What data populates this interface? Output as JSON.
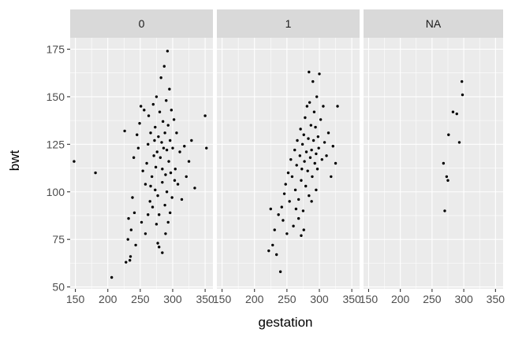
{
  "chart_data": {
    "type": "scatter",
    "xlabel": "gestation",
    "ylabel": "bwt",
    "xlim": [
      142,
      362
    ],
    "ylim": [
      49,
      181
    ],
    "x_ticks": [
      150,
      200,
      250,
      300,
      350
    ],
    "y_ticks": [
      50,
      75,
      100,
      125,
      150,
      175
    ],
    "facets": [
      {
        "label": "0",
        "points": [
          [
            148,
            116
          ],
          [
            181,
            110
          ],
          [
            206,
            55
          ],
          [
            226,
            132
          ],
          [
            228,
            63
          ],
          [
            231,
            75
          ],
          [
            232,
            86
          ],
          [
            234,
            64
          ],
          [
            235,
            66
          ],
          [
            236,
            80
          ],
          [
            238,
            97
          ],
          [
            240,
            118
          ],
          [
            241,
            89
          ],
          [
            243,
            72
          ],
          [
            245,
            130
          ],
          [
            247,
            123
          ],
          [
            249,
            136
          ],
          [
            251,
            145
          ],
          [
            252,
            84
          ],
          [
            254,
            111
          ],
          [
            256,
            143
          ],
          [
            258,
            104
          ],
          [
            260,
            115
          ],
          [
            262,
            125
          ],
          [
            263,
            140
          ],
          [
            265,
            95
          ],
          [
            266,
            131
          ],
          [
            268,
            108
          ],
          [
            270,
            146
          ],
          [
            271,
            119
          ],
          [
            272,
            127
          ],
          [
            273,
            134
          ],
          [
            274,
            113
          ],
          [
            275,
            150
          ],
          [
            276,
            121
          ],
          [
            277,
            73
          ],
          [
            278,
            129
          ],
          [
            279,
            71
          ],
          [
            280,
            142
          ],
          [
            281,
            118
          ],
          [
            282,
            160
          ],
          [
            283,
            126
          ],
          [
            284,
            112
          ],
          [
            285,
            137
          ],
          [
            286,
            123
          ],
          [
            287,
            166
          ],
          [
            288,
            131
          ],
          [
            289,
            109
          ],
          [
            290,
            148
          ],
          [
            291,
            122
          ],
          [
            292,
            174
          ],
          [
            293,
            135
          ],
          [
            294,
            116
          ],
          [
            295,
            154
          ],
          [
            296,
            127
          ],
          [
            297,
            110
          ],
          [
            298,
            143
          ],
          [
            300,
            123
          ],
          [
            302,
            138
          ],
          [
            304,
            112
          ],
          [
            306,
            131
          ],
          [
            308,
            104
          ],
          [
            311,
            121
          ],
          [
            314,
            96
          ],
          [
            318,
            124
          ],
          [
            321,
            108
          ],
          [
            325,
            116
          ],
          [
            329,
            127
          ],
          [
            334,
            102
          ],
          [
            350,
            140
          ],
          [
            352,
            123
          ],
          [
            284,
            105
          ],
          [
            279,
            88
          ],
          [
            277,
            98
          ],
          [
            273,
            101
          ],
          [
            269,
            92
          ],
          [
            266,
            103
          ],
          [
            262,
            88
          ],
          [
            258,
            78
          ],
          [
            288,
            93
          ],
          [
            291,
            100
          ],
          [
            296,
            89
          ],
          [
            299,
            97
          ],
          [
            303,
            106
          ],
          [
            284,
            68
          ],
          [
            275,
            83
          ],
          [
            289,
            78
          ],
          [
            293,
            84
          ]
        ]
      },
      {
        "label": "1",
        "points": [
          [
            222,
            69
          ],
          [
            225,
            91
          ],
          [
            228,
            72
          ],
          [
            231,
            80
          ],
          [
            234,
            67
          ],
          [
            237,
            88
          ],
          [
            240,
            58
          ],
          [
            242,
            92
          ],
          [
            244,
            85
          ],
          [
            246,
            99
          ],
          [
            248,
            104
          ],
          [
            250,
            78
          ],
          [
            252,
            110
          ],
          [
            254,
            95
          ],
          [
            256,
            117
          ],
          [
            258,
            108
          ],
          [
            260,
            82
          ],
          [
            262,
            122
          ],
          [
            263,
            101
          ],
          [
            265,
            114
          ],
          [
            266,
            127
          ],
          [
            268,
            96
          ],
          [
            270,
            119
          ],
          [
            271,
            133
          ],
          [
            272,
            106
          ],
          [
            273,
            112
          ],
          [
            274,
            125
          ],
          [
            275,
            90
          ],
          [
            276,
            130
          ],
          [
            277,
            116
          ],
          [
            278,
            139
          ],
          [
            279,
            103
          ],
          [
            280,
            121
          ],
          [
            281,
            145
          ],
          [
            282,
            111
          ],
          [
            283,
            128
          ],
          [
            284,
            98
          ],
          [
            285,
            147
          ],
          [
            286,
            118
          ],
          [
            287,
            135
          ],
          [
            288,
            122
          ],
          [
            289,
            108
          ],
          [
            290,
            158
          ],
          [
            291,
            127
          ],
          [
            292,
            142
          ],
          [
            293,
            115
          ],
          [
            294,
            134
          ],
          [
            295,
            120
          ],
          [
            296,
            150
          ],
          [
            297,
            112
          ],
          [
            298,
            129
          ],
          [
            299,
            123
          ],
          [
            300,
            162
          ],
          [
            302,
            138
          ],
          [
            304,
            117
          ],
          [
            306,
            145
          ],
          [
            308,
            126
          ],
          [
            311,
            119
          ],
          [
            314,
            131
          ],
          [
            318,
            108
          ],
          [
            321,
            124
          ],
          [
            325,
            115
          ],
          [
            328,
            145
          ],
          [
            284,
            163
          ],
          [
            276,
            80
          ],
          [
            272,
            77
          ],
          [
            268,
            86
          ],
          [
            264,
            91
          ],
          [
            288,
            95
          ],
          [
            295,
            101
          ]
        ]
      },
      {
        "label": "NA",
        "points": [
          [
            268,
            115
          ],
          [
            270,
            90
          ],
          [
            273,
            108
          ],
          [
            275,
            106
          ],
          [
            276,
            130
          ],
          [
            283,
            142
          ],
          [
            289,
            141
          ],
          [
            293,
            126
          ],
          [
            297,
            158
          ],
          [
            298,
            151
          ]
        ]
      }
    ]
  }
}
